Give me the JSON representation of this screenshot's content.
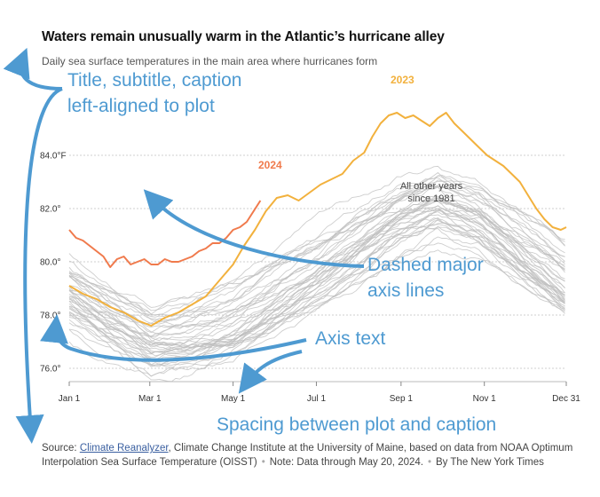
{
  "header": {
    "title": "Waters remain unusually warm in the Atlantic’s hurricane alley",
    "subtitle": "Daily sea surface temperatures in the main area where hurricanes form"
  },
  "source": {
    "prefix": "Source: ",
    "link_text": "Climate Reanalyzer",
    "rest": ", Climate Change Institute at the University of Maine, based on data from NOAA Optimum Interpolation Sea Surface Temperature (OISST)",
    "note": "Note: Data through May 20, 2024.",
    "credit": "By The New York Times"
  },
  "meta_annotations": {
    "title_note": "Title, subtitle, caption left-aligned to plot",
    "title_note_line1": "Title, subtitle, caption",
    "title_note_line2": "left-aligned to plot",
    "gridline_note_line1": "Dashed major",
    "gridline_note_line2": "axis lines",
    "axis_text_note": "Axis text",
    "spacing_note": "Spacing between plot and caption",
    "color": "#4e9ad1"
  },
  "chart_data": {
    "type": "line",
    "x_axis": {
      "ticks": [
        "Jan 1",
        "Mar 1",
        "May 1",
        "Jul 1",
        "Sep 1",
        "Nov 1",
        "Dec 31"
      ],
      "tick_days": [
        0,
        59,
        120,
        181,
        243,
        304,
        364
      ]
    },
    "y_axis": {
      "ticks": [
        "76.0°",
        "78.0°",
        "80.0°",
        "82.0°",
        "84.0°F"
      ],
      "tick_values": [
        76,
        78,
        80,
        82,
        84
      ],
      "range": [
        75.5,
        86.5
      ],
      "unit": "°F",
      "grid": "dashed"
    },
    "series": [
      {
        "name": "2023",
        "color": "#f2b13d",
        "points": [
          [
            0,
            79.1
          ],
          [
            10,
            78.8
          ],
          [
            20,
            78.6
          ],
          [
            30,
            78.3
          ],
          [
            40,
            78.1
          ],
          [
            50,
            77.8
          ],
          [
            60,
            77.6
          ],
          [
            70,
            77.9
          ],
          [
            80,
            78.1
          ],
          [
            90,
            78.4
          ],
          [
            100,
            78.7
          ],
          [
            110,
            79.3
          ],
          [
            120,
            79.9
          ],
          [
            128,
            80.6
          ],
          [
            136,
            81.2
          ],
          [
            144,
            81.9
          ],
          [
            152,
            82.4
          ],
          [
            160,
            82.5
          ],
          [
            168,
            82.3
          ],
          [
            176,
            82.6
          ],
          [
            184,
            82.9
          ],
          [
            192,
            83.1
          ],
          [
            200,
            83.3
          ],
          [
            208,
            83.8
          ],
          [
            216,
            84.1
          ],
          [
            222,
            84.7
          ],
          [
            228,
            85.2
          ],
          [
            234,
            85.5
          ],
          [
            240,
            85.6
          ],
          [
            246,
            85.4
          ],
          [
            252,
            85.5
          ],
          [
            258,
            85.3
          ],
          [
            264,
            85.1
          ],
          [
            270,
            85.4
          ],
          [
            276,
            85.6
          ],
          [
            282,
            85.2
          ],
          [
            288,
            84.9
          ],
          [
            294,
            84.6
          ],
          [
            300,
            84.3
          ],
          [
            306,
            84.0
          ],
          [
            312,
            83.8
          ],
          [
            318,
            83.6
          ],
          [
            324,
            83.3
          ],
          [
            330,
            83.0
          ],
          [
            336,
            82.5
          ],
          [
            342,
            82.0
          ],
          [
            348,
            81.6
          ],
          [
            354,
            81.3
          ],
          [
            360,
            81.2
          ],
          [
            364,
            81.3
          ]
        ]
      },
      {
        "name": "2024",
        "color": "#f07a4c",
        "points": [
          [
            0,
            81.2
          ],
          [
            5,
            80.9
          ],
          [
            10,
            80.8
          ],
          [
            15,
            80.6
          ],
          [
            20,
            80.4
          ],
          [
            25,
            80.2
          ],
          [
            30,
            79.8
          ],
          [
            35,
            80.1
          ],
          [
            40,
            80.2
          ],
          [
            45,
            79.9
          ],
          [
            50,
            80.0
          ],
          [
            55,
            80.1
          ],
          [
            60,
            79.9
          ],
          [
            65,
            79.9
          ],
          [
            70,
            80.1
          ],
          [
            75,
            80.0
          ],
          [
            80,
            80.0
          ],
          [
            85,
            80.1
          ],
          [
            90,
            80.2
          ],
          [
            95,
            80.4
          ],
          [
            100,
            80.5
          ],
          [
            105,
            80.7
          ],
          [
            110,
            80.7
          ],
          [
            115,
            80.9
          ],
          [
            120,
            81.2
          ],
          [
            125,
            81.3
          ],
          [
            130,
            81.5
          ],
          [
            135,
            81.9
          ],
          [
            140,
            82.3
          ]
        ]
      }
    ],
    "background_series": {
      "name": "All other years since 1981",
      "color": "#bdbdbd",
      "count": 42,
      "baseline_points": [
        [
          0,
          79.2
        ],
        [
          30,
          78.2
        ],
        [
          60,
          77.3
        ],
        [
          90,
          77.5
        ],
        [
          120,
          78.0
        ],
        [
          150,
          79.0
        ],
        [
          180,
          80.0
        ],
        [
          210,
          81.0
        ],
        [
          240,
          82.0
        ],
        [
          270,
          82.6
        ],
        [
          300,
          82.0
        ],
        [
          330,
          80.8
        ],
        [
          364,
          79.5
        ]
      ]
    },
    "labels": {
      "series_2023": "2023",
      "series_2024": "2024",
      "other_years_line1": "All other years",
      "other_years_line2": "since 1981"
    }
  }
}
